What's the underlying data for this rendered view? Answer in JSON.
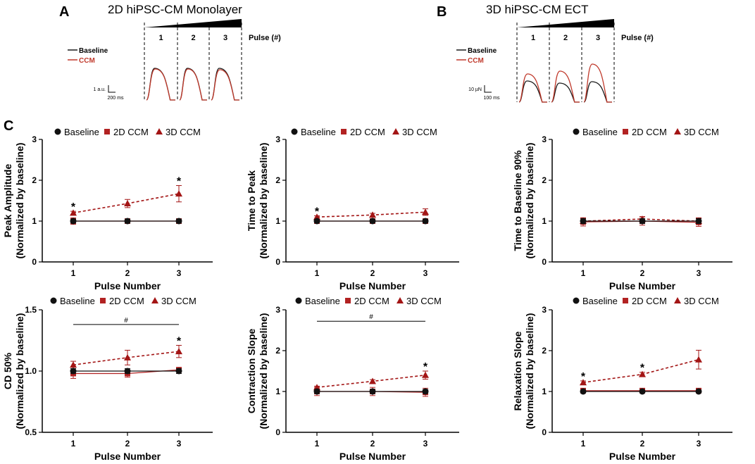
{
  "panelA": {
    "letter": "A",
    "title": "2D hiPSC-CM Monolayer",
    "pulse_label": "Pulse (#)",
    "pulses": [
      "1",
      "2",
      "3"
    ],
    "legend": [
      {
        "label": "Baseline",
        "color": "#1a1a1a"
      },
      {
        "label": "CCM",
        "color": "#c0392b"
      }
    ],
    "scale_y": "1 a.u.",
    "scale_x": "200 ms"
  },
  "panelB": {
    "letter": "B",
    "title": "3D hiPSC-CM ECT",
    "pulse_label": "Pulse (#)",
    "pulses": [
      "1",
      "2",
      "3"
    ],
    "legend": [
      {
        "label": "Baseline",
        "color": "#1a1a1a"
      },
      {
        "label": "CCM",
        "color": "#c0392b"
      }
    ],
    "scale_y": "10 µN",
    "scale_x": "100 ms"
  },
  "panelC": {
    "letter": "C"
  },
  "colors": {
    "baseline": "#111111",
    "ccm2d": "#b22222",
    "ccm3d": "#a31515",
    "gray": "#888888"
  },
  "legend_labels": [
    "Baseline",
    "2D CCM",
    "3D CCM"
  ],
  "chart_data": [
    {
      "type": "line",
      "ylabel": "Peak Amplitude",
      "ylabel2": "(Normalized by baseline)",
      "xlabel": "Pulse Number",
      "x": [
        1,
        2,
        3
      ],
      "ylim": [
        0,
        3
      ],
      "yticks": [
        0,
        1,
        2,
        3
      ],
      "ytick_labels": [
        "0",
        "1",
        "2",
        "3"
      ],
      "series": [
        {
          "name": "Baseline",
          "values": [
            1.0,
            1.0,
            1.0
          ],
          "err": [
            0.05,
            0.05,
            0.05
          ]
        },
        {
          "name": "2D CCM",
          "values": [
            1.0,
            1.0,
            1.0
          ],
          "err": [
            0.08,
            0.06,
            0.06
          ]
        },
        {
          "name": "3D CCM",
          "values": [
            1.2,
            1.43,
            1.67
          ],
          "err": [
            0.04,
            0.1,
            0.2
          ]
        }
      ],
      "stars": [
        1,
        3
      ],
      "hash_bar": false
    },
    {
      "type": "line",
      "ylabel": "Time to Peak",
      "ylabel2": "(Normalized by baseline)",
      "xlabel": "Pulse Number",
      "x": [
        1,
        2,
        3
      ],
      "ylim": [
        0,
        3
      ],
      "yticks": [
        0,
        1,
        2,
        3
      ],
      "ytick_labels": [
        "0",
        "1",
        "2",
        "3"
      ],
      "series": [
        {
          "name": "Baseline",
          "values": [
            1.0,
            1.0,
            1.0
          ],
          "err": [
            0.04,
            0.04,
            0.04
          ]
        },
        {
          "name": "2D CCM",
          "values": [
            1.0,
            1.0,
            1.0
          ],
          "err": [
            0.05,
            0.05,
            0.05
          ]
        },
        {
          "name": "3D CCM",
          "values": [
            1.1,
            1.15,
            1.22
          ],
          "err": [
            0.03,
            0.04,
            0.08
          ]
        }
      ],
      "stars": [
        1
      ],
      "hash_bar": false
    },
    {
      "type": "line",
      "ylabel": "Time to Baseline 90%",
      "ylabel2": "(Normalized by baseline)",
      "xlabel": "Pulse Number",
      "x": [
        1,
        2,
        3
      ],
      "ylim": [
        0,
        3
      ],
      "yticks": [
        0,
        1,
        2,
        3
      ],
      "ytick_labels": [
        "0",
        "1",
        "2",
        "3"
      ],
      "series": [
        {
          "name": "Baseline",
          "values": [
            1.0,
            1.0,
            1.0
          ],
          "err": [
            0.06,
            0.06,
            0.06
          ]
        },
        {
          "name": "2D CCM",
          "values": [
            0.98,
            1.0,
            0.97
          ],
          "err": [
            0.1,
            0.1,
            0.1
          ]
        },
        {
          "name": "3D CCM",
          "values": [
            1.0,
            1.05,
            1.0
          ],
          "err": [
            0.08,
            0.06,
            0.08
          ]
        }
      ],
      "stars": [],
      "hash_bar": false
    },
    {
      "type": "line",
      "ylabel": "CD 50%",
      "ylabel2": "(Normalized by baseline)",
      "xlabel": "Pulse Number",
      "x": [
        1,
        2,
        3
      ],
      "ylim": [
        0.5,
        1.5
      ],
      "yticks": [
        0.5,
        1.0,
        1.5
      ],
      "ytick_labels": [
        "0.5",
        "1.0",
        "1.5"
      ],
      "series": [
        {
          "name": "Baseline",
          "values": [
            1.0,
            1.0,
            1.0
          ],
          "err": [
            0.02,
            0.02,
            0.02
          ]
        },
        {
          "name": "2D CCM",
          "values": [
            0.98,
            0.98,
            1.01
          ],
          "err": [
            0.04,
            0.03,
            0.02
          ]
        },
        {
          "name": "3D CCM",
          "values": [
            1.05,
            1.11,
            1.16
          ],
          "err": [
            0.03,
            0.06,
            0.05
          ]
        }
      ],
      "stars": [
        3
      ],
      "hash_bar": true,
      "hash_y": 1.38,
      "hash_label": "#"
    },
    {
      "type": "line",
      "ylabel": "Contraction Slope",
      "ylabel2": "(Normalized by baseline)",
      "xlabel": "Pulse Number",
      "x": [
        1,
        2,
        3
      ],
      "ylim": [
        0,
        3
      ],
      "yticks": [
        0,
        1,
        2,
        3
      ],
      "ytick_labels": [
        "0",
        "1",
        "2",
        "3"
      ],
      "series": [
        {
          "name": "Baseline",
          "values": [
            1.0,
            1.0,
            1.0
          ],
          "err": [
            0.05,
            0.05,
            0.05
          ]
        },
        {
          "name": "2D CCM",
          "values": [
            1.0,
            1.0,
            0.98
          ],
          "err": [
            0.1,
            0.1,
            0.1
          ]
        },
        {
          "name": "3D CCM",
          "values": [
            1.1,
            1.25,
            1.4
          ],
          "err": [
            0.03,
            0.04,
            0.1
          ]
        }
      ],
      "stars": [
        3
      ],
      "hash_bar": true,
      "hash_y": 2.72,
      "hash_label": "#"
    },
    {
      "type": "line",
      "ylabel": "Relaxation Slope",
      "ylabel2": "(Normalized by baseline)",
      "xlabel": "Pulse Number",
      "x": [
        1,
        2,
        3
      ],
      "ylim": [
        0,
        3
      ],
      "yticks": [
        0,
        1,
        2,
        3
      ],
      "ytick_labels": [
        "0",
        "1",
        "2",
        "3"
      ],
      "series": [
        {
          "name": "Baseline",
          "values": [
            1.0,
            1.0,
            1.0
          ],
          "err": [
            0.03,
            0.03,
            0.03
          ]
        },
        {
          "name": "2D CCM",
          "values": [
            1.02,
            1.02,
            1.02
          ],
          "err": [
            0.04,
            0.04,
            0.04
          ]
        },
        {
          "name": "3D CCM",
          "values": [
            1.22,
            1.42,
            1.78
          ],
          "err": [
            0.04,
            0.05,
            0.23
          ]
        }
      ],
      "stars": [
        1,
        2
      ],
      "hash_bar": false
    }
  ]
}
